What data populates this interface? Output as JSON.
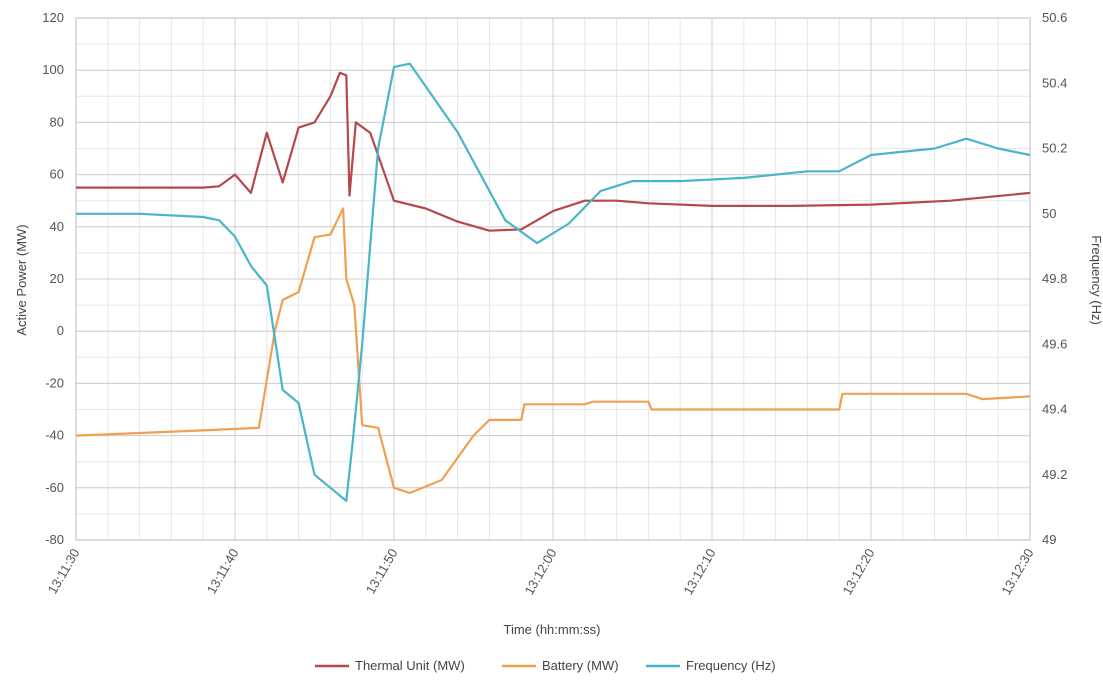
{
  "chart_data": {
    "type": "line",
    "title": "",
    "xlabel": "Time (hh:mm:ss)",
    "ylabel": "Active Power (MW)",
    "y2label": "Frequency (Hz)",
    "x_ticks": [
      "13:11:30",
      "13:11:40",
      "13:11:50",
      "13:12:00",
      "13:12:10",
      "13:12:20",
      "13:12:30"
    ],
    "xlim": [
      "13:11:30",
      "13:12:30"
    ],
    "ylim": [
      -80,
      120
    ],
    "y_ticks": [
      -80,
      -60,
      -40,
      -20,
      0,
      20,
      40,
      60,
      80,
      100,
      120
    ],
    "y2lim": [
      49,
      50.6
    ],
    "y2_ticks": [
      "49",
      "49.2",
      "49.4",
      "49.6",
      "49.8",
      "50",
      "50.2",
      "50.4",
      "50.6"
    ],
    "grid": true,
    "legend_position": "bottom",
    "series": [
      {
        "name": "Thermal Unit (MW)",
        "axis": "left",
        "color": "#b5484a",
        "points": [
          [
            "13:11:30",
            55
          ],
          [
            "13:11:34",
            55
          ],
          [
            "13:11:38",
            55
          ],
          [
            "13:11:39",
            55.5
          ],
          [
            "13:11:40",
            60
          ],
          [
            "13:11:41",
            53
          ],
          [
            "13:11:42",
            76
          ],
          [
            "13:11:43",
            57
          ],
          [
            "13:11:44",
            78
          ],
          [
            "13:11:45",
            80
          ],
          [
            "13:11:46",
            90
          ],
          [
            "13:11:46.6",
            99
          ],
          [
            "13:11:47",
            98
          ],
          [
            "13:11:47.2",
            52
          ],
          [
            "13:11:47.6",
            80
          ],
          [
            "13:11:48.5",
            76
          ],
          [
            "13:11:50",
            50
          ],
          [
            "13:11:52",
            47
          ],
          [
            "13:11:54",
            42
          ],
          [
            "13:11:56",
            38.5
          ],
          [
            "13:11:58",
            39
          ],
          [
            "13:12:00",
            46
          ],
          [
            "13:12:02",
            50
          ],
          [
            "13:12:04",
            50
          ],
          [
            "13:12:06",
            49
          ],
          [
            "13:12:10",
            48
          ],
          [
            "13:12:15",
            48
          ],
          [
            "13:12:20",
            48.5
          ],
          [
            "13:12:25",
            50
          ],
          [
            "13:12:30",
            53
          ]
        ]
      },
      {
        "name": "Battery (MW)",
        "axis": "left",
        "color": "#f0a050",
        "points": [
          [
            "13:11:30",
            -40
          ],
          [
            "13:11:34",
            -39
          ],
          [
            "13:11:38",
            -38
          ],
          [
            "13:11:41.5",
            -37
          ],
          [
            "13:11:42.5",
            0
          ],
          [
            "13:11:43",
            12
          ],
          [
            "13:11:44",
            15
          ],
          [
            "13:11:45",
            36
          ],
          [
            "13:11:46",
            37
          ],
          [
            "13:11:46.8",
            47
          ],
          [
            "13:11:47",
            20
          ],
          [
            "13:11:47.5",
            10
          ],
          [
            "13:11:48",
            -36
          ],
          [
            "13:11:49",
            -37
          ],
          [
            "13:11:50",
            -60
          ],
          [
            "13:11:51",
            -62
          ],
          [
            "13:11:53",
            -57
          ],
          [
            "13:11:55",
            -40
          ],
          [
            "13:11:56",
            -34
          ],
          [
            "13:11:58",
            -34
          ],
          [
            "13:11:58.2",
            -28
          ],
          [
            "13:12:02",
            -28
          ],
          [
            "13:12:02.5",
            -27
          ],
          [
            "13:12:06",
            -27
          ],
          [
            "13:12:06.2",
            -30
          ],
          [
            "13:12:18",
            -30
          ],
          [
            "13:12:18.2",
            -24
          ],
          [
            "13:12:26",
            -24
          ],
          [
            "13:12:27",
            -26
          ],
          [
            "13:12:30",
            -25
          ]
        ]
      },
      {
        "name": "Frequency (Hz)",
        "axis": "right",
        "color": "#4ab5c8",
        "points": [
          [
            "13:11:30",
            50
          ],
          [
            "13:11:34",
            50
          ],
          [
            "13:11:38",
            49.99
          ],
          [
            "13:11:39",
            49.98
          ],
          [
            "13:11:40",
            49.93
          ],
          [
            "13:11:41",
            49.84
          ],
          [
            "13:11:42",
            49.78
          ],
          [
            "13:11:43",
            49.46
          ],
          [
            "13:11:44",
            49.42
          ],
          [
            "13:11:45",
            49.2
          ],
          [
            "13:11:46",
            49.16
          ],
          [
            "13:11:47",
            49.12
          ],
          [
            "13:11:47.4",
            49.3
          ],
          [
            "13:11:48",
            49.6
          ],
          [
            "13:11:49",
            50.2
          ],
          [
            "13:11:50",
            50.45
          ],
          [
            "13:11:51",
            50.46
          ],
          [
            "13:11:54",
            50.25
          ],
          [
            "13:11:57",
            49.98
          ],
          [
            "13:11:59",
            49.91
          ],
          [
            "13:12:01",
            49.97
          ],
          [
            "13:12:03",
            50.07
          ],
          [
            "13:12:05",
            50.1
          ],
          [
            "13:12:08",
            50.1
          ],
          [
            "13:12:12",
            50.11
          ],
          [
            "13:12:16",
            50.13
          ],
          [
            "13:12:18",
            50.13
          ],
          [
            "13:12:20",
            50.18
          ],
          [
            "13:12:24",
            50.2
          ],
          [
            "13:12:26",
            50.23
          ],
          [
            "13:12:28",
            50.2
          ],
          [
            "13:12:30",
            50.18
          ]
        ]
      }
    ]
  }
}
